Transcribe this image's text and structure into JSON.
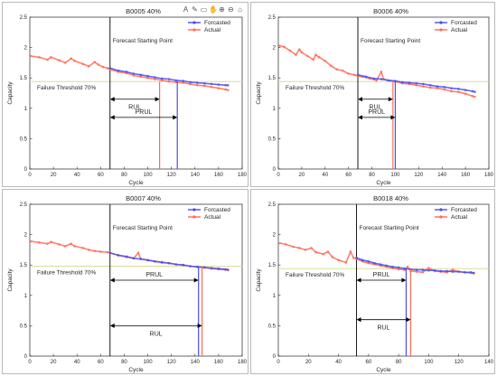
{
  "chart_data": [
    {
      "type": "line",
      "title": "B0005 40%",
      "xlabel": "Cycle",
      "ylabel": "Capacity",
      "xlim": [
        0,
        180
      ],
      "ylim": [
        0,
        2.5
      ],
      "xticks": [
        0,
        20,
        40,
        60,
        80,
        100,
        120,
        140,
        160,
        180
      ],
      "yticks": [
        0,
        0.5,
        1,
        1.5,
        2,
        2.5
      ],
      "grid": false,
      "legend": "top-right",
      "forecast_start": 68,
      "forecast_start_label": "Forecast Starting Point",
      "threshold": 1.44,
      "threshold_label": "Failure Threshold 70%",
      "rul_end": 110,
      "prul_end": 125,
      "rul_label": "RUL",
      "prul_label": "PRUL",
      "rul_y": 1.15,
      "prul_y": 0.85,
      "series": [
        {
          "name": "Actual",
          "color": "#ff6a55",
          "x": [
            1,
            8,
            15,
            18,
            25,
            30,
            35,
            38,
            45,
            50,
            55,
            58,
            62,
            66,
            68,
            75,
            82,
            88,
            94,
            100,
            106,
            112,
            118,
            124,
            130,
            136,
            142,
            148,
            154,
            160,
            166,
            168
          ],
          "y": [
            1.86,
            1.84,
            1.8,
            1.84,
            1.79,
            1.75,
            1.82,
            1.78,
            1.73,
            1.69,
            1.76,
            1.72,
            1.68,
            1.66,
            1.64,
            1.6,
            1.58,
            1.54,
            1.52,
            1.5,
            1.48,
            1.46,
            1.44,
            1.43,
            1.42,
            1.4,
            1.38,
            1.37,
            1.35,
            1.33,
            1.31,
            1.3
          ]
        },
        {
          "name": "Forcasted",
          "color": "#4a4cf0",
          "x": [
            68,
            75,
            82,
            88,
            94,
            100,
            106,
            112,
            118,
            124,
            130,
            136,
            142,
            148,
            154,
            160,
            166,
            168
          ],
          "y": [
            1.66,
            1.62,
            1.6,
            1.57,
            1.55,
            1.53,
            1.51,
            1.49,
            1.48,
            1.46,
            1.45,
            1.43,
            1.42,
            1.41,
            1.4,
            1.39,
            1.38,
            1.38
          ]
        }
      ]
    },
    {
      "type": "line",
      "title": "B0006 40%",
      "xlabel": "Cycle",
      "ylabel": "Capacity",
      "xlim": [
        0,
        180
      ],
      "ylim": [
        0,
        2.5
      ],
      "xticks": [
        0,
        20,
        40,
        60,
        80,
        100,
        120,
        140,
        160,
        180
      ],
      "yticks": [
        0,
        0.5,
        1,
        1.5,
        2,
        2.5
      ],
      "grid": false,
      "legend": "top-right",
      "forecast_start": 68,
      "forecast_start_label": "Forecast Starting Point",
      "threshold": 1.44,
      "threshold_label": "Failure Threshold 70%",
      "rul_end": 98,
      "prul_end": 100,
      "rul_label": "RUL",
      "prul_label": "PRUL",
      "rul_y": 1.15,
      "prul_y": 0.85,
      "series": [
        {
          "name": "Actual",
          "color": "#ff6a55",
          "x": [
            1,
            5,
            10,
            15,
            18,
            20,
            25,
            30,
            32,
            35,
            40,
            45,
            50,
            55,
            60,
            65,
            68,
            72,
            78,
            84,
            88,
            90,
            96,
            100,
            106,
            112,
            118,
            124,
            130,
            136,
            142,
            148,
            154,
            160,
            166,
            168
          ],
          "y": [
            2.03,
            2.01,
            1.95,
            1.88,
            1.97,
            1.92,
            1.86,
            1.8,
            1.88,
            1.84,
            1.78,
            1.7,
            1.64,
            1.62,
            1.57,
            1.55,
            1.53,
            1.52,
            1.49,
            1.46,
            1.6,
            1.48,
            1.45,
            1.44,
            1.41,
            1.4,
            1.38,
            1.36,
            1.34,
            1.33,
            1.31,
            1.28,
            1.27,
            1.24,
            1.2,
            1.19
          ]
        },
        {
          "name": "Forcasted",
          "color": "#4a4cf0",
          "x": [
            68,
            75,
            82,
            88,
            94,
            100,
            106,
            112,
            118,
            124,
            130,
            136,
            142,
            148,
            154,
            160,
            166,
            168
          ],
          "y": [
            1.55,
            1.52,
            1.49,
            1.48,
            1.46,
            1.45,
            1.43,
            1.42,
            1.41,
            1.4,
            1.38,
            1.36,
            1.35,
            1.33,
            1.32,
            1.3,
            1.28,
            1.27
          ]
        }
      ]
    },
    {
      "type": "line",
      "title": "B0007 40%",
      "xlabel": "Cycle",
      "ylabel": "Capacity",
      "xlim": [
        0,
        180
      ],
      "ylim": [
        0,
        2.5
      ],
      "xticks": [
        0,
        20,
        40,
        60,
        80,
        100,
        120,
        140,
        160,
        180
      ],
      "yticks": [
        0,
        0.5,
        1,
        1.5,
        2,
        2.5
      ],
      "grid": false,
      "legend": "top-right",
      "forecast_start": 68,
      "forecast_start_label": "Forecast Starting Point",
      "threshold": 1.48,
      "threshold_label": "Failure Threshold 70%",
      "rul_end": 146,
      "prul_end": 143,
      "rul_label": "RUL",
      "prul_label": "PRUL",
      "rul_y": 0.5,
      "prul_y": 1.25,
      "series": [
        {
          "name": "Actual",
          "color": "#ff6a55",
          "x": [
            1,
            8,
            15,
            18,
            25,
            30,
            35,
            38,
            45,
            50,
            55,
            60,
            66,
            68,
            75,
            82,
            88,
            92,
            94,
            100,
            106,
            112,
            118,
            124,
            130,
            136,
            142,
            148,
            154,
            160,
            166,
            168
          ],
          "y": [
            1.89,
            1.87,
            1.85,
            1.88,
            1.84,
            1.81,
            1.85,
            1.81,
            1.78,
            1.75,
            1.73,
            1.72,
            1.71,
            1.7,
            1.66,
            1.63,
            1.61,
            1.7,
            1.6,
            1.58,
            1.56,
            1.55,
            1.53,
            1.51,
            1.5,
            1.48,
            1.47,
            1.46,
            1.44,
            1.43,
            1.42,
            1.42
          ]
        },
        {
          "name": "Forcasted",
          "color": "#4a4cf0",
          "x": [
            68,
            75,
            82,
            88,
            94,
            100,
            106,
            112,
            118,
            124,
            130,
            136,
            142,
            148,
            154,
            160,
            166,
            168
          ],
          "y": [
            1.7,
            1.66,
            1.64,
            1.61,
            1.6,
            1.58,
            1.56,
            1.54,
            1.53,
            1.51,
            1.5,
            1.48,
            1.47,
            1.46,
            1.45,
            1.44,
            1.43,
            1.42
          ]
        }
      ]
    },
    {
      "type": "line",
      "title": "B0018 40%",
      "xlabel": "Cycle",
      "ylabel": "Capacity",
      "xlim": [
        0,
        140
      ],
      "ylim": [
        0,
        2.5
      ],
      "xticks": [
        0,
        20,
        40,
        60,
        80,
        100,
        120,
        140
      ],
      "yticks": [
        0,
        0.5,
        1,
        1.5,
        2,
        2.5
      ],
      "grid": false,
      "legend": "top-right",
      "forecast_start": 52,
      "forecast_start_label": "Forecast Starting Point",
      "threshold": 1.44,
      "threshold_label": "Failure Threshold 70%",
      "rul_end": 88,
      "prul_end": 85,
      "rul_label": "RUL",
      "prul_label": "PRUL",
      "rul_y": 0.6,
      "prul_y": 1.25,
      "series": [
        {
          "name": "Actual",
          "color": "#ff6a55",
          "x": [
            1,
            5,
            10,
            14,
            18,
            22,
            25,
            30,
            33,
            36,
            40,
            45,
            48,
            50,
            52,
            56,
            60,
            64,
            68,
            72,
            76,
            80,
            84,
            86,
            88,
            92,
            96,
            100,
            104,
            108,
            112,
            116,
            120,
            124,
            128,
            130
          ],
          "y": [
            1.86,
            1.84,
            1.8,
            1.78,
            1.75,
            1.78,
            1.71,
            1.68,
            1.72,
            1.63,
            1.58,
            1.54,
            1.72,
            1.62,
            1.6,
            1.56,
            1.53,
            1.51,
            1.49,
            1.47,
            1.45,
            1.43,
            1.42,
            1.47,
            1.4,
            1.39,
            1.38,
            1.45,
            1.4,
            1.39,
            1.38,
            1.42,
            1.39,
            1.38,
            1.37,
            1.36
          ]
        },
        {
          "name": "Forcasted",
          "color": "#4a4cf0",
          "x": [
            52,
            56,
            60,
            64,
            68,
            72,
            76,
            80,
            84,
            88,
            92,
            96,
            100,
            104,
            108,
            112,
            116,
            120,
            124,
            128,
            130
          ],
          "y": [
            1.62,
            1.58,
            1.56,
            1.53,
            1.51,
            1.49,
            1.47,
            1.46,
            1.44,
            1.43,
            1.42,
            1.42,
            1.41,
            1.41,
            1.4,
            1.4,
            1.39,
            1.39,
            1.38,
            1.38,
            1.37
          ]
        }
      ]
    }
  ],
  "legend_order": [
    "Forcasted",
    "Actual"
  ],
  "colors": {
    "threshold_line": "#d8dd9a",
    "forecast_line": "#000000",
    "axis": "#262626"
  },
  "toolbar_icons": [
    "text-icon",
    "brush-icon",
    "save-icon",
    "hand-icon",
    "zoom-in-icon",
    "zoom-out-icon",
    "home-icon"
  ]
}
